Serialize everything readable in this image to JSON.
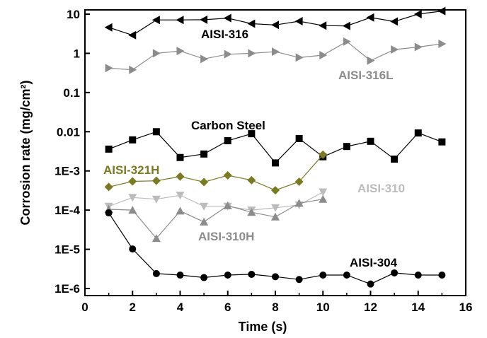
{
  "chart_data": {
    "type": "line",
    "title": "",
    "xlabel": "Time (s)",
    "ylabel": "Corrosion rate (mg/cm²)",
    "xlim": [
      0,
      16
    ],
    "ylim": [
      1e-06,
      10
    ],
    "yscale": "log",
    "x_ticks": [
      0,
      2,
      4,
      6,
      8,
      10,
      12,
      14,
      16
    ],
    "x_tick_labels": [
      "0",
      "2",
      "4",
      "6",
      "8",
      "10",
      "12",
      "14",
      "16"
    ],
    "y_ticks": [
      1e-06,
      1e-05,
      0.0001,
      0.001,
      0.01,
      0.1,
      1,
      10
    ],
    "y_tick_labels": [
      "1E-6",
      "1E-5",
      "1E-4",
      "1E-3",
      "0.01",
      "0.1",
      "1",
      "10"
    ],
    "grid": false,
    "series": [
      {
        "name": "AISI-316",
        "color": "#000000",
        "marker": "triangle-left",
        "x": [
          1,
          2,
          3,
          4,
          5,
          6,
          7,
          8,
          9,
          10,
          11,
          12,
          13,
          14,
          15
        ],
        "y": [
          4.6,
          2.9,
          7.1,
          7.1,
          7.2,
          7.9,
          5.7,
          5.3,
          6.6,
          5.1,
          5.0,
          8.2,
          6.5,
          10.0,
          12.0
        ]
      },
      {
        "name": "AISI-316L",
        "color": "#8c8c8c",
        "marker": "triangle-right",
        "x": [
          1,
          2,
          3,
          4,
          5,
          6,
          7,
          8,
          9,
          10,
          11,
          12,
          13,
          14,
          15
        ],
        "y": [
          0.42,
          0.38,
          1.0,
          1.15,
          0.72,
          0.95,
          1.0,
          1.1,
          0.78,
          0.9,
          2.0,
          0.65,
          1.25,
          1.45,
          1.75
        ]
      },
      {
        "name": "Carbon Steel",
        "color": "#000000",
        "marker": "square",
        "x": [
          1,
          2,
          3,
          4,
          5,
          6,
          7,
          8,
          9,
          10,
          11,
          12,
          13,
          14,
          15
        ],
        "y": [
          0.0036,
          0.0062,
          0.01,
          0.0022,
          0.0027,
          0.0059,
          0.0089,
          0.0016,
          0.0067,
          0.0023,
          0.0042,
          0.0057,
          0.002,
          0.0093,
          0.0055
        ]
      },
      {
        "name": "AISI-321H",
        "color": "#7a7a1e",
        "marker": "diamond",
        "x": [
          1,
          2,
          3,
          4,
          5,
          6,
          7,
          8,
          9,
          10
        ],
        "y": [
          0.00039,
          0.00054,
          0.00056,
          0.00072,
          0.00052,
          0.00077,
          0.00058,
          0.00032,
          0.00053,
          0.0026
        ]
      },
      {
        "name": "AISI-310",
        "color": "#bcbcbc",
        "marker": "triangle-down",
        "x": [
          1,
          2,
          3,
          4,
          5,
          6,
          7,
          8,
          9,
          10
        ],
        "y": [
          0.000125,
          0.00021,
          0.00019,
          0.00024,
          0.000125,
          0.000125,
          0.0001,
          0.000115,
          0.000135,
          0.00029
        ]
      },
      {
        "name": "AISI-310H",
        "color": "#8c8c8c",
        "marker": "triangle-up",
        "x": [
          1,
          2,
          3,
          4,
          5,
          6,
          7,
          8,
          9,
          10
        ],
        "y": [
          0.000105,
          0.0001,
          1.9e-05,
          9.5e-05,
          5e-05,
          0.00013,
          8.8e-05,
          6.7e-05,
          0.00015,
          0.00019
        ]
      },
      {
        "name": "AISI-304",
        "color": "#000000",
        "marker": "circle",
        "x": [
          1,
          2,
          3,
          4,
          5,
          6,
          7,
          8,
          9,
          10,
          11,
          12,
          13,
          14,
          15
        ],
        "y": [
          8.5e-05,
          1.02e-05,
          2.4e-06,
          2.2e-06,
          1.9e-06,
          2.2e-06,
          2.3e-06,
          2e-06,
          1.7e-06,
          2.2e-06,
          2.2e-06,
          1.3e-06,
          2.5e-06,
          2.2e-06,
          2.2e-06
        ]
      }
    ]
  }
}
